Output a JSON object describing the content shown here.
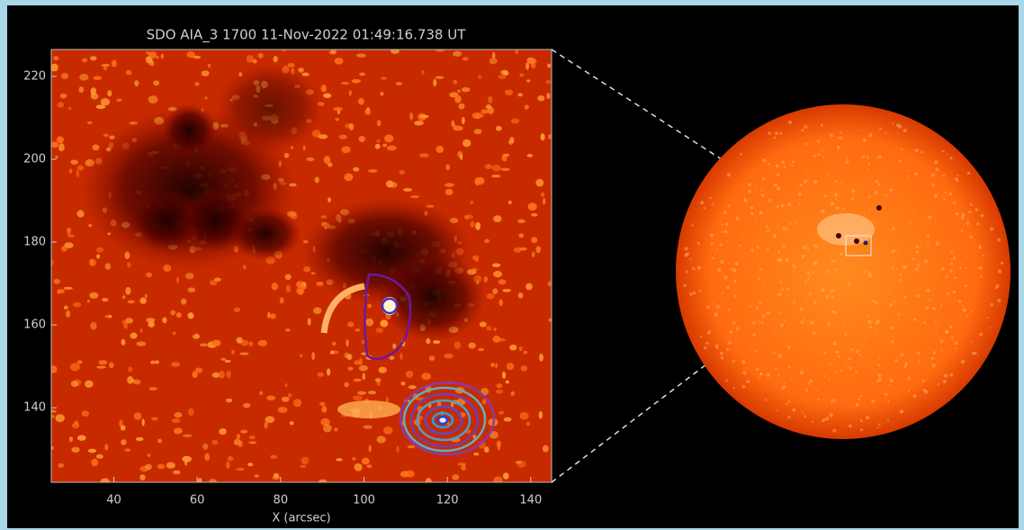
{
  "chart_data": {
    "type": "image",
    "title": "SDO AIA_3 1700 11-Nov-2022 01:49:16.738 UT",
    "x_label": "X (arcsec)",
    "xlim": [
      25,
      145
    ],
    "xticks": [
      40,
      60,
      80,
      100,
      120,
      140
    ],
    "ylim": [
      122,
      226.5
    ],
    "yticks": [
      140,
      160,
      180,
      200,
      220
    ]
  }
}
